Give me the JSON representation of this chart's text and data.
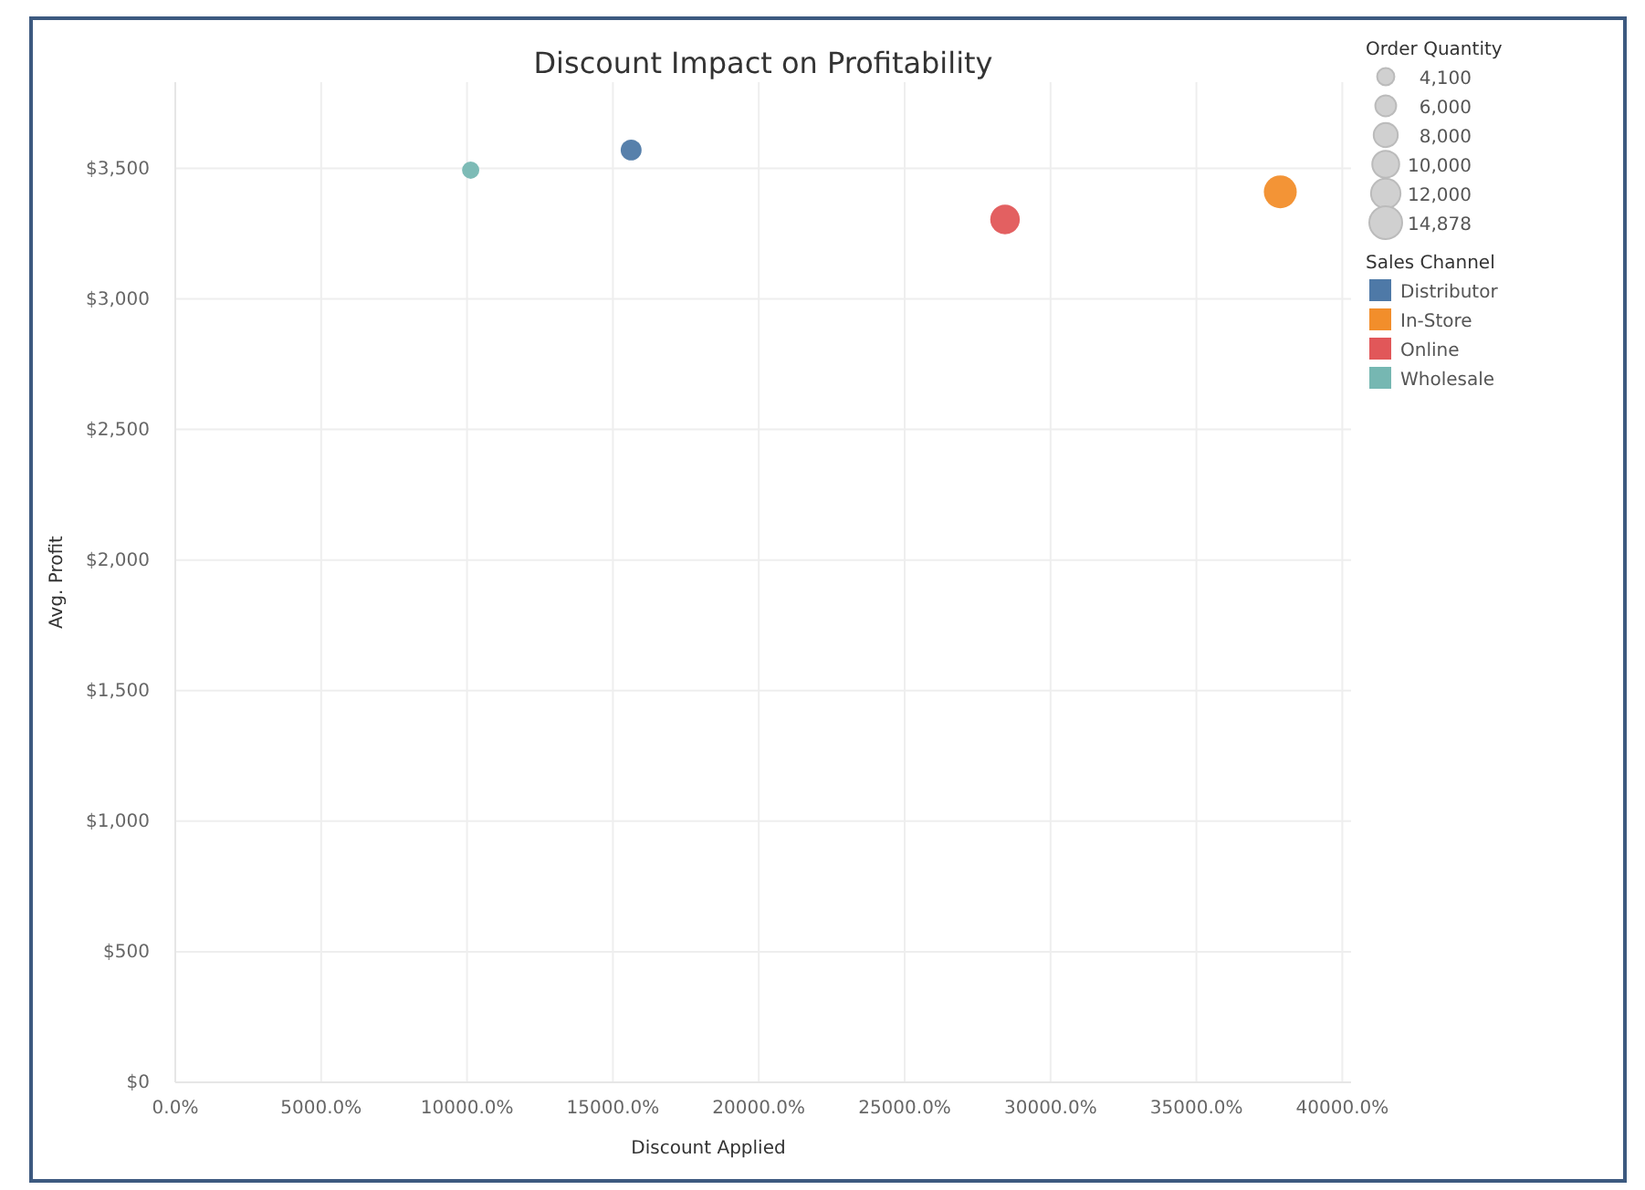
{
  "chart_data": {
    "type": "bubble",
    "title": "Discount Impact on Profitability",
    "xlabel": "Discount Applied",
    "ylabel": "Avg. Profit",
    "legend_title": "Sales Channel",
    "series": [
      {
        "name": "Distributor",
        "color": "#4e79a7",
        "x": [
          15625
        ],
        "values": [
          3570
        ],
        "sizes": [
          6000
        ]
      },
      {
        "name": "In-Store",
        "color": "#f28e2b",
        "x": [
          37875
        ],
        "values": [
          3410
        ],
        "sizes": [
          14878
        ]
      },
      {
        "name": "Online",
        "color": "#e15759",
        "x": [
          28440
        ],
        "values": [
          3304
        ],
        "sizes": [
          12000
        ]
      },
      {
        "name": "Wholesale",
        "color": "#76b7b2",
        "x": [
          10125
        ],
        "values": [
          3493
        ],
        "sizes": [
          4100
        ]
      }
    ],
    "annotations": [
      "Order Quantity"
    ],
    "size_legend": [
      {
        "value": 4100,
        "label": "4,100"
      },
      {
        "value": 6000,
        "label": "6,000"
      },
      {
        "value": 8000,
        "label": "8,000"
      },
      {
        "value": 10000,
        "label": "10,000"
      },
      {
        "value": 12000,
        "label": "12,000"
      },
      {
        "value": 14878,
        "label": "14,878"
      }
    ],
    "xlim": [
      0,
      40300
    ],
    "ylim": [
      0,
      3830
    ],
    "xticks": [
      {
        "value": 0,
        "label": "0.0%"
      },
      {
        "value": 5000,
        "label": "5000.0%"
      },
      {
        "value": 10000,
        "label": "10000.0%"
      },
      {
        "value": 15000,
        "label": "15000.0%"
      },
      {
        "value": 20000,
        "label": "20000.0%"
      },
      {
        "value": 25000,
        "label": "25000.0%"
      },
      {
        "value": 30000,
        "label": "30000.0%"
      },
      {
        "value": 35000,
        "label": "35000.0%"
      },
      {
        "value": 40000,
        "label": "40000.0%"
      }
    ],
    "yticks": [
      {
        "value": 0,
        "label": "$0"
      },
      {
        "value": 500,
        "label": "$500"
      },
      {
        "value": 1000,
        "label": "$1,000"
      },
      {
        "value": 1500,
        "label": "$1,500"
      },
      {
        "value": 2000,
        "label": "$2,000"
      },
      {
        "value": 2500,
        "label": "$2,500"
      },
      {
        "value": 3000,
        "label": "$3,000"
      },
      {
        "value": 3500,
        "label": "$3,500"
      }
    ],
    "grid": true,
    "legend": "right",
    "marker": "circle"
  }
}
